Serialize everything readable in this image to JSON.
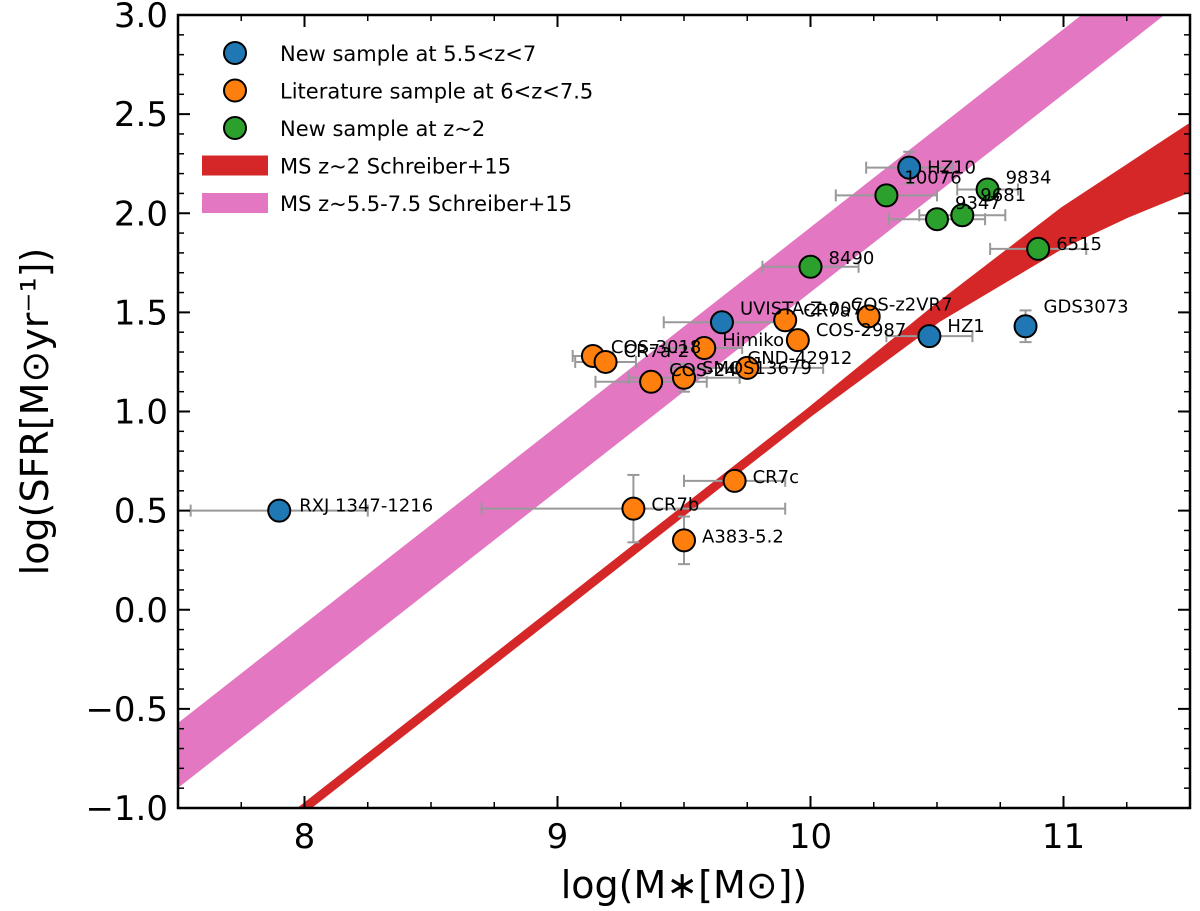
{
  "chart_data": {
    "type": "scatter",
    "title": "",
    "xlabel": "log(M∗[M⊙])",
    "ylabel": "log(SFR[M⊙yr⁻¹])",
    "xlim": [
      7.5,
      11.5
    ],
    "ylim": [
      -1.0,
      3.0
    ],
    "xticks": [
      8,
      9,
      10,
      11
    ],
    "xtick_labels": [
      "8",
      "9",
      "10",
      "11"
    ],
    "yticks": [
      -1.0,
      -0.5,
      0.0,
      0.5,
      1.0,
      1.5,
      2.0,
      2.5,
      3.0
    ],
    "ytick_labels": [
      "−1.0",
      "−0.5",
      "0.0",
      "0.5",
      "1.0",
      "1.5",
      "2.0",
      "2.5",
      "3.0"
    ],
    "legend_position": "top-left",
    "colors": {
      "new_high_z": "#1f77b4",
      "literature": "#ff7f0e",
      "new_z2": "#2ca02c",
      "ms_z2": "#d62728",
      "ms_high_z": "#e377c2",
      "errorbar": "#999999"
    },
    "bands": [
      {
        "name": "MS z~2 Schreiber+15",
        "color_key": "ms_z2",
        "x": [
          7.5,
          8.0,
          8.5,
          9.0,
          9.5,
          10.0,
          10.5,
          11.0,
          11.25,
          11.5
        ],
        "lower": [
          -1.5,
          -1.0,
          -0.5,
          0.0,
          0.5,
          1.0,
          1.47,
          1.85,
          2.0,
          2.13
        ],
        "upper": [
          -1.5,
          -1.0,
          -0.5,
          0.0,
          0.5,
          1.0,
          1.52,
          2.01,
          2.22,
          2.43
        ]
      },
      {
        "name": "MS z~5.5-7.5 Schreiber+15",
        "color_key": "ms_high_z",
        "x": [
          7.5,
          11.5
        ],
        "lower": [
          -0.87,
          3.13
        ],
        "upper": [
          -0.6,
          3.4
        ]
      }
    ],
    "series": [
      {
        "name": "New sample at 5.5<z<7",
        "color_key": "new_high_z",
        "points": [
          {
            "label": "HZ10",
            "x": 10.39,
            "y": 2.23,
            "xerr": 0.17,
            "yerr": 0.08,
            "label_dx": 18,
            "label_dy": 0
          },
          {
            "label": "UVISTA-Z-007",
            "x": 9.65,
            "y": 1.45,
            "xerr": 0.23,
            "yerr": 0.0,
            "label_dx": 18,
            "label_dy": -14
          },
          {
            "label": "HZ1",
            "x": 10.47,
            "y": 1.38,
            "xerr": 0.17,
            "yerr": 0.0,
            "label_dx": 18,
            "label_dy": -10
          },
          {
            "label": "GDS3073",
            "x": 10.85,
            "y": 1.43,
            "xerr": 0.0,
            "yerr": 0.08,
            "label_dx": 18,
            "label_dy": -20
          },
          {
            "label": "RXJ 1347-1216",
            "x": 7.9,
            "y": 0.5,
            "xerr": 0.35,
            "yerr": 0.05,
            "label_dx": 20,
            "label_dy": -5
          }
        ]
      },
      {
        "name": "Literature sample at 6<z<7.5",
        "color_key": "literature",
        "points": [
          {
            "label": "CR7a",
            "x": 9.9,
            "y": 1.46,
            "xerr": 0.0,
            "yerr": 0.0,
            "label_dx": 18,
            "label_dy": -10
          },
          {
            "label": "COS-z2VR7",
            "x": 10.23,
            "y": 1.48,
            "xerr": 0.0,
            "yerr": 0.0,
            "label_dx": -18,
            "label_dy": -12
          },
          {
            "label": "COS-2987",
            "x": 9.95,
            "y": 1.36,
            "xerr": 0.0,
            "yerr": 0.0,
            "label_dx": 18,
            "label_dy": -10
          },
          {
            "label": "COS-3018",
            "x": 9.14,
            "y": 1.28,
            "xerr": 0.08,
            "yerr": 0.0,
            "label_dx": 18,
            "label_dy": -9
          },
          {
            "label": "Himiko",
            "x": 9.58,
            "y": 1.32,
            "xerr": 0.15,
            "yerr": 0.0,
            "label_dx": 18,
            "label_dy": -8
          },
          {
            "label": "CR7a-2",
            "x": 9.19,
            "y": 1.25,
            "xerr": 0.12,
            "yerr": 0.0,
            "label_dx": 18,
            "label_dy": -11
          },
          {
            "label": "COS-24",
            "x": 9.37,
            "y": 1.15,
            "xerr": 0.22,
            "yerr": 0.0,
            "label_dx": 18,
            "label_dy": -12
          },
          {
            "label": "SMOS13679",
            "x": 9.5,
            "y": 1.17,
            "xerr": 0.22,
            "yerr": 0.07,
            "label_dx": 18,
            "label_dy": -10
          },
          {
            "label": "GND-42912",
            "x": 9.75,
            "y": 1.22,
            "xerr": 0.3,
            "yerr": 0.0,
            "label_dx": 0,
            "label_dy": -10
          },
          {
            "label": "CR7c",
            "x": 9.7,
            "y": 0.65,
            "xerr": 0.2,
            "yerr": 0.0,
            "label_dx": 18,
            "label_dy": -4
          },
          {
            "label": "CR7b",
            "x": 9.3,
            "y": 0.51,
            "xerr": 0.6,
            "yerr": 0.17,
            "label_dx": 18,
            "label_dy": -4
          },
          {
            "label": "A383-5.2",
            "x": 9.5,
            "y": 0.35,
            "xerr": 0.0,
            "yerr": 0.12,
            "label_dx": 18,
            "label_dy": -4
          }
        ]
      },
      {
        "name": "New sample at z~2",
        "color_key": "new_z2",
        "points": [
          {
            "label": "10076",
            "x": 10.3,
            "y": 2.09,
            "xerr": 0.2,
            "yerr": 0.0,
            "label_dx": 18,
            "label_dy": -18
          },
          {
            "label": "9834",
            "x": 10.7,
            "y": 2.12,
            "xerr": 0.12,
            "yerr": 0.0,
            "label_dx": 18,
            "label_dy": -12
          },
          {
            "label": "9681",
            "x": 10.6,
            "y": 1.99,
            "xerr": 0.17,
            "yerr": 0.0,
            "label_dx": 18,
            "label_dy": -20
          },
          {
            "label": "9347",
            "x": 10.5,
            "y": 1.97,
            "xerr": 0.19,
            "yerr": 0.0,
            "label_dx": 18,
            "label_dy": -16
          },
          {
            "label": "8490",
            "x": 10.0,
            "y": 1.73,
            "xerr": 0.19,
            "yerr": 0.0,
            "label_dx": 18,
            "label_dy": -9
          },
          {
            "label": "6515",
            "x": 10.9,
            "y": 1.82,
            "xerr": 0.19,
            "yerr": 0.0,
            "label_dx": 18,
            "label_dy": -5
          }
        ]
      }
    ]
  }
}
